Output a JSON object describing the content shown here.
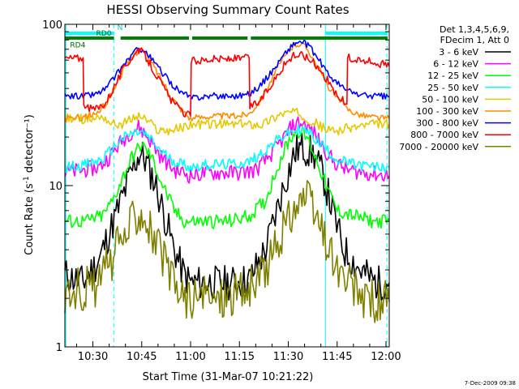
{
  "chart_data": {
    "type": "line",
    "title": "HESSI Observing Summary Count Rates",
    "xlabel": "Start Time (31-Mar-07 10:21:22)",
    "ylabel": "Count Rate (s⁻¹ detector⁻¹)",
    "xscale": "time (minutes after 10:00)",
    "yscale": "log",
    "xlim": [
      21.4,
      121.0
    ],
    "ylim": [
      1,
      100
    ],
    "x_ticks": [
      {
        "value": 30,
        "label": "10:30"
      },
      {
        "value": 45,
        "label": "10:45"
      },
      {
        "value": 60,
        "label": "11:00"
      },
      {
        "value": 75,
        "label": "11:15"
      },
      {
        "value": 90,
        "label": "11:30"
      },
      {
        "value": 105,
        "label": "11:45"
      },
      {
        "value": 120,
        "label": "12:00"
      }
    ],
    "y_ticks": [
      {
        "value": 1,
        "label": "1"
      },
      {
        "value": 10,
        "label": "10"
      },
      {
        "value": 100,
        "label": "100"
      }
    ],
    "legend": {
      "header": [
        "Det 1,3,4,5,6,9,",
        "FDecim 1, Att 0"
      ],
      "placement": "right"
    },
    "series": [
      {
        "name": "3 - 6 keV",
        "color": "#000000",
        "x": [
          21.4,
          27,
          32,
          34,
          37,
          40,
          43,
          44.5,
          46,
          49,
          52,
          55,
          58,
          60,
          63,
          68,
          73,
          78,
          83,
          86,
          89,
          91.5,
          93,
          95,
          98,
          101,
          104,
          107,
          112,
          117,
          121
        ],
        "y": [
          2.8,
          2.5,
          3.5,
          4.5,
          6.5,
          9.5,
          14,
          16,
          14.5,
          10.5,
          6.5,
          4,
          2.8,
          2.5,
          2.5,
          2.5,
          2.5,
          2.6,
          4,
          6.5,
          10.5,
          15,
          17,
          17,
          15.5,
          11,
          6.5,
          4,
          3,
          2.5,
          2.5
        ]
      },
      {
        "name": "6 - 12 keV",
        "color": "#ff00ff",
        "x": [
          21.4,
          27,
          32,
          35,
          38,
          41,
          44,
          46,
          48,
          51,
          55,
          58,
          60,
          65,
          70,
          75,
          80,
          84,
          88,
          91,
          93,
          95,
          98,
          101,
          104,
          108,
          114,
          121
        ],
        "y": [
          12,
          12.5,
          13,
          15,
          18,
          21,
          23,
          21,
          18.5,
          15,
          12.5,
          12,
          11.5,
          12,
          12,
          12,
          12.5,
          15,
          19,
          23,
          24.5,
          24,
          21,
          17,
          14,
          12.5,
          12,
          11.5
        ]
      },
      {
        "name": "12 - 25 keV",
        "color": "#00ff00",
        "x": [
          21.4,
          28,
          33,
          36,
          39,
          42,
          45,
          48,
          51,
          55,
          58,
          60,
          65,
          72,
          78,
          83,
          86,
          89,
          91.5,
          93.5,
          96,
          99,
          102,
          105,
          110,
          116,
          121
        ],
        "y": [
          6,
          6,
          6.5,
          8,
          11,
          15,
          18,
          15,
          10.5,
          7,
          6,
          6,
          6,
          6,
          6.5,
          8,
          12,
          17,
          21,
          22,
          19.5,
          14,
          9.5,
          7,
          6.5,
          6,
          6
        ]
      },
      {
        "name": "25 - 50 keV",
        "color": "#00ffff",
        "x": [
          21.4,
          28,
          33,
          36,
          39,
          42,
          44.5,
          47,
          50,
          54,
          58,
          60,
          65,
          72,
          78,
          82,
          85,
          88,
          91,
          93.5,
          96,
          99,
          102,
          105,
          110,
          116,
          121
        ],
        "y": [
          13,
          13.5,
          14.5,
          17,
          19.5,
          21,
          21.5,
          20,
          17,
          14.5,
          13.5,
          13,
          13.5,
          13.5,
          14,
          16,
          18,
          20,
          21.5,
          22.5,
          21.5,
          19,
          16.5,
          14.5,
          13.5,
          13,
          13
        ]
      },
      {
        "name": "50 - 100 keV",
        "color": "#e6c800",
        "x": [
          21.4,
          30,
          33,
          36,
          39,
          42,
          44.5,
          47,
          50,
          54,
          58,
          60,
          65,
          72,
          78,
          82,
          85,
          88,
          91,
          93.5,
          96,
          99,
          102,
          105,
          110,
          116,
          121
        ],
        "y": [
          26,
          26,
          27,
          24,
          24,
          26,
          27,
          25,
          22,
          22,
          23,
          24,
          24,
          24,
          24,
          24,
          26,
          28,
          28.5,
          28,
          26,
          24,
          22,
          22,
          23,
          24,
          24
        ]
      },
      {
        "name": "100 - 300 keV",
        "color": "#ff8c00",
        "x": [
          21.4,
          27,
          31,
          34,
          37,
          40,
          43,
          44.5,
          46,
          48,
          51,
          54,
          57,
          60,
          63,
          66,
          70,
          74,
          78,
          81,
          84,
          87,
          90,
          92,
          94,
          96,
          99,
          102,
          105,
          108,
          111,
          114,
          117,
          121
        ],
        "y": [
          26,
          26.5,
          28,
          32,
          42,
          55,
          66,
          70,
          66,
          58,
          46,
          36,
          30,
          26,
          26.5,
          27,
          27,
          27,
          28,
          33,
          42,
          55,
          68,
          75,
          76,
          70,
          55,
          42,
          35,
          30,
          28,
          27,
          26.5,
          26
        ]
      },
      {
        "name": "300 - 800 keV",
        "color": "#0000ff",
        "x": [
          21.4,
          27,
          31,
          34,
          37,
          40,
          43,
          44.5,
          46,
          48,
          51,
          54,
          57,
          60,
          63,
          66,
          70,
          74,
          78,
          81,
          84,
          87,
          90,
          92,
          94,
          96,
          99,
          102,
          105,
          108,
          111,
          114,
          117,
          121
        ],
        "y": [
          36,
          36,
          37,
          40,
          48,
          58,
          68,
          71,
          68,
          61,
          51,
          43,
          38,
          35,
          35.5,
          36,
          36,
          36,
          37,
          41,
          48,
          58,
          70,
          76,
          78,
          74,
          62,
          50,
          43,
          39,
          37,
          36,
          36,
          35.5
        ]
      },
      {
        "name": "800 - 7000 keV",
        "color": "#ff0000",
        "x": [
          21.4,
          27,
          27.2,
          31,
          34,
          37,
          40,
          43,
          44.5,
          46,
          48,
          51,
          54,
          57,
          60,
          60.2,
          63,
          66,
          70,
          74,
          78,
          78.2,
          81,
          84,
          87,
          90,
          92,
          94,
          96,
          99,
          102,
          105,
          108,
          108.2,
          111,
          114,
          117,
          121
        ],
        "y": [
          62,
          62,
          30,
          30,
          33,
          43,
          56,
          66,
          69,
          64,
          55,
          43,
          34,
          29,
          27,
          60,
          60,
          61,
          61,
          61,
          62,
          31,
          33,
          40,
          50,
          60,
          64,
          65,
          62,
          55,
          45,
          36,
          32,
          62,
          60,
          59,
          58,
          55
        ]
      },
      {
        "name": "7000 - 20000 keV",
        "color": "#808000",
        "x": [
          21.4,
          25,
          29,
          32,
          35,
          38,
          41,
          43,
          44.5,
          46,
          48,
          51,
          54,
          57,
          60,
          63,
          67,
          71,
          75,
          79,
          82,
          85,
          88,
          91,
          93,
          95,
          97,
          99,
          102,
          105,
          108,
          111,
          114,
          117,
          121
        ],
        "y": [
          2.2,
          2.3,
          2.3,
          2.5,
          3.2,
          4.2,
          5.5,
          6.7,
          7.2,
          6.6,
          5.2,
          3.7,
          2.6,
          2.1,
          2.0,
          2.0,
          2.0,
          2.1,
          2.2,
          2.3,
          2.8,
          3.7,
          5,
          6.8,
          8.0,
          8.3,
          7.5,
          6,
          4.3,
          3.0,
          2.4,
          2.2,
          2.0,
          1.9,
          1.9
        ]
      }
    ],
    "attenuator_bars": [
      {
        "color": "#00ffff",
        "segments": [
          [
            21.4,
            36.5
          ],
          [
            101.5,
            120.5
          ]
        ]
      },
      {
        "color": "#008000",
        "segments": [
          [
            21.4,
            36.5
          ],
          [
            38.5,
            59.5
          ],
          [
            60.5,
            77.5
          ],
          [
            78.5,
            120.5
          ]
        ]
      }
    ],
    "annotations": [
      {
        "text": "N",
        "x": 37.5,
        "y": 92,
        "color": "#00cccc"
      },
      {
        "text": "RD0",
        "x": 31,
        "y": 85,
        "color": "#006400"
      },
      {
        "text": "RD4",
        "x": 23,
        "y": 72,
        "color": "#006400"
      }
    ],
    "vertical_markers": [
      {
        "x": 21.7,
        "style": "solid",
        "color": "#00ffff"
      },
      {
        "x": 36.4,
        "style": "dashed",
        "color": "#00ffff"
      },
      {
        "x": 101.4,
        "style": "solid",
        "color": "#00ffff"
      },
      {
        "x": 120.3,
        "style": "dashed",
        "color": "#00ffff"
      }
    ]
  },
  "footer": {
    "timestamp": "7-Dec-2009 09:38"
  }
}
